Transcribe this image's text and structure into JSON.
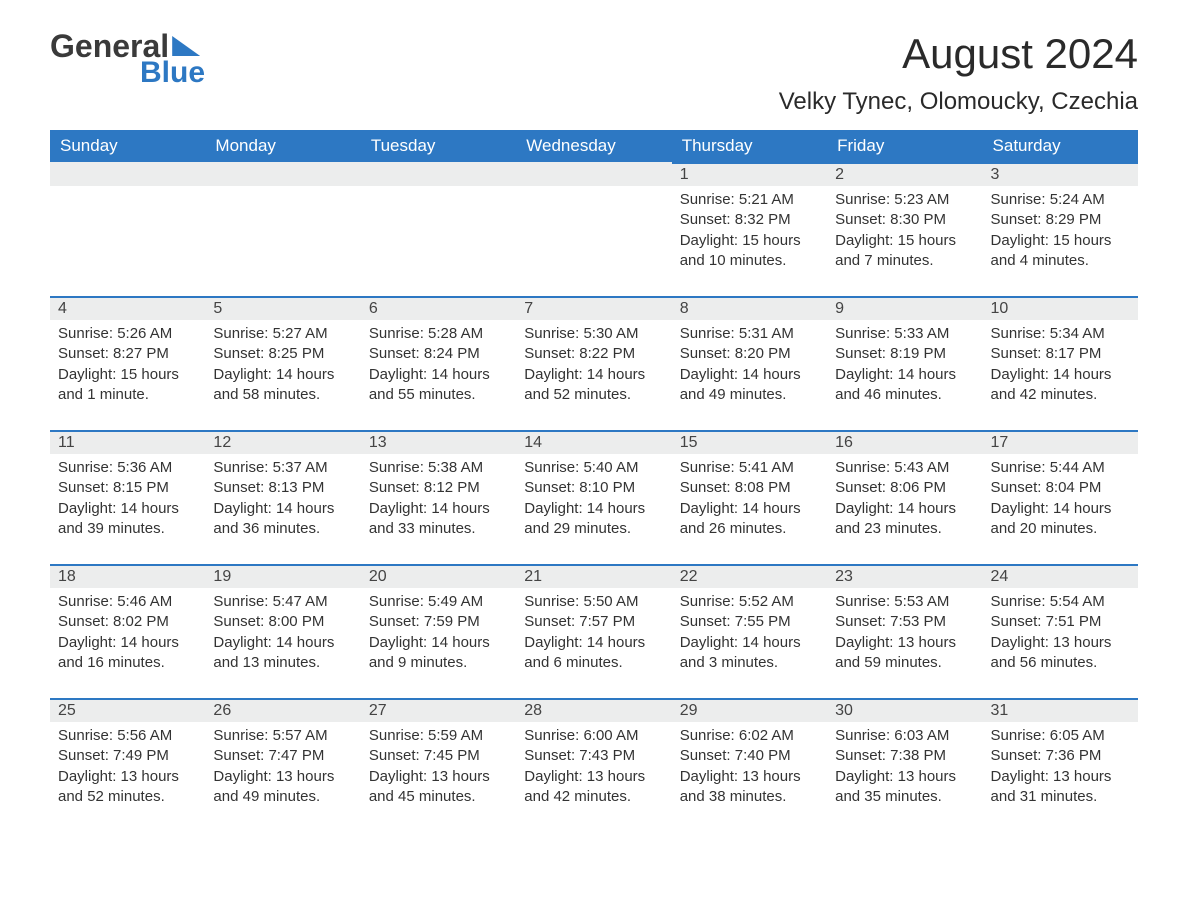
{
  "brand": {
    "word1": "General",
    "word2": "Blue"
  },
  "title": "August 2024",
  "subtitle": "Velky Tynec, Olomoucky, Czechia",
  "colors": {
    "accent": "#2d78c3",
    "header_text": "#ffffff",
    "daynum_bg": "#eceded",
    "body_text": "#333333",
    "background": "#ffffff"
  },
  "calendar": {
    "type": "table",
    "columns": [
      "Sunday",
      "Monday",
      "Tuesday",
      "Wednesday",
      "Thursday",
      "Friday",
      "Saturday"
    ],
    "start_weekday_index": 4,
    "days": [
      {
        "n": 1,
        "sunrise": "5:21 AM",
        "sunset": "8:32 PM",
        "daylight": "15 hours and 10 minutes."
      },
      {
        "n": 2,
        "sunrise": "5:23 AM",
        "sunset": "8:30 PM",
        "daylight": "15 hours and 7 minutes."
      },
      {
        "n": 3,
        "sunrise": "5:24 AM",
        "sunset": "8:29 PM",
        "daylight": "15 hours and 4 minutes."
      },
      {
        "n": 4,
        "sunrise": "5:26 AM",
        "sunset": "8:27 PM",
        "daylight": "15 hours and 1 minute."
      },
      {
        "n": 5,
        "sunrise": "5:27 AM",
        "sunset": "8:25 PM",
        "daylight": "14 hours and 58 minutes."
      },
      {
        "n": 6,
        "sunrise": "5:28 AM",
        "sunset": "8:24 PM",
        "daylight": "14 hours and 55 minutes."
      },
      {
        "n": 7,
        "sunrise": "5:30 AM",
        "sunset": "8:22 PM",
        "daylight": "14 hours and 52 minutes."
      },
      {
        "n": 8,
        "sunrise": "5:31 AM",
        "sunset": "8:20 PM",
        "daylight": "14 hours and 49 minutes."
      },
      {
        "n": 9,
        "sunrise": "5:33 AM",
        "sunset": "8:19 PM",
        "daylight": "14 hours and 46 minutes."
      },
      {
        "n": 10,
        "sunrise": "5:34 AM",
        "sunset": "8:17 PM",
        "daylight": "14 hours and 42 minutes."
      },
      {
        "n": 11,
        "sunrise": "5:36 AM",
        "sunset": "8:15 PM",
        "daylight": "14 hours and 39 minutes."
      },
      {
        "n": 12,
        "sunrise": "5:37 AM",
        "sunset": "8:13 PM",
        "daylight": "14 hours and 36 minutes."
      },
      {
        "n": 13,
        "sunrise": "5:38 AM",
        "sunset": "8:12 PM",
        "daylight": "14 hours and 33 minutes."
      },
      {
        "n": 14,
        "sunrise": "5:40 AM",
        "sunset": "8:10 PM",
        "daylight": "14 hours and 29 minutes."
      },
      {
        "n": 15,
        "sunrise": "5:41 AM",
        "sunset": "8:08 PM",
        "daylight": "14 hours and 26 minutes."
      },
      {
        "n": 16,
        "sunrise": "5:43 AM",
        "sunset": "8:06 PM",
        "daylight": "14 hours and 23 minutes."
      },
      {
        "n": 17,
        "sunrise": "5:44 AM",
        "sunset": "8:04 PM",
        "daylight": "14 hours and 20 minutes."
      },
      {
        "n": 18,
        "sunrise": "5:46 AM",
        "sunset": "8:02 PM",
        "daylight": "14 hours and 16 minutes."
      },
      {
        "n": 19,
        "sunrise": "5:47 AM",
        "sunset": "8:00 PM",
        "daylight": "14 hours and 13 minutes."
      },
      {
        "n": 20,
        "sunrise": "5:49 AM",
        "sunset": "7:59 PM",
        "daylight": "14 hours and 9 minutes."
      },
      {
        "n": 21,
        "sunrise": "5:50 AM",
        "sunset": "7:57 PM",
        "daylight": "14 hours and 6 minutes."
      },
      {
        "n": 22,
        "sunrise": "5:52 AM",
        "sunset": "7:55 PM",
        "daylight": "14 hours and 3 minutes."
      },
      {
        "n": 23,
        "sunrise": "5:53 AM",
        "sunset": "7:53 PM",
        "daylight": "13 hours and 59 minutes."
      },
      {
        "n": 24,
        "sunrise": "5:54 AM",
        "sunset": "7:51 PM",
        "daylight": "13 hours and 56 minutes."
      },
      {
        "n": 25,
        "sunrise": "5:56 AM",
        "sunset": "7:49 PM",
        "daylight": "13 hours and 52 minutes."
      },
      {
        "n": 26,
        "sunrise": "5:57 AM",
        "sunset": "7:47 PM",
        "daylight": "13 hours and 49 minutes."
      },
      {
        "n": 27,
        "sunrise": "5:59 AM",
        "sunset": "7:45 PM",
        "daylight": "13 hours and 45 minutes."
      },
      {
        "n": 28,
        "sunrise": "6:00 AM",
        "sunset": "7:43 PM",
        "daylight": "13 hours and 42 minutes."
      },
      {
        "n": 29,
        "sunrise": "6:02 AM",
        "sunset": "7:40 PM",
        "daylight": "13 hours and 38 minutes."
      },
      {
        "n": 30,
        "sunrise": "6:03 AM",
        "sunset": "7:38 PM",
        "daylight": "13 hours and 35 minutes."
      },
      {
        "n": 31,
        "sunrise": "6:05 AM",
        "sunset": "7:36 PM",
        "daylight": "13 hours and 31 minutes."
      }
    ],
    "labels": {
      "sunrise": "Sunrise:",
      "sunset": "Sunset:",
      "daylight": "Daylight:"
    }
  }
}
